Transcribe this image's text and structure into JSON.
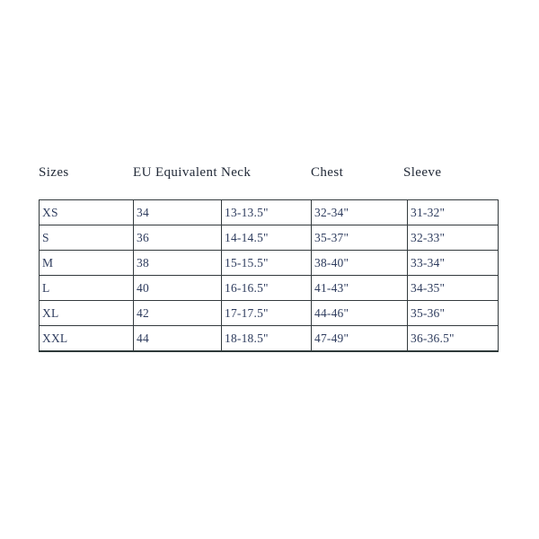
{
  "chart_data": {
    "type": "table",
    "columns": [
      "Sizes",
      "EU Equivalent",
      "Neck",
      "Chest",
      "Sleeve"
    ],
    "rows": [
      [
        "XS",
        "34",
        "13-13.5\"",
        "32-34\"",
        "31-32\""
      ],
      [
        "S",
        "36",
        "14-14.5\"",
        "35-37\"",
        "32-33\""
      ],
      [
        "M",
        "38",
        "15-15.5\"",
        "38-40\"",
        "33-34\""
      ],
      [
        "L",
        "40",
        "16-16.5\"",
        "41-43\"",
        "34-35\""
      ],
      [
        "XL",
        "42",
        "17-17.5\"",
        "44-46\"",
        "35-36\""
      ],
      [
        "XXL",
        "44",
        "18-18.5\"",
        "47-49\"",
        "36-36.5\""
      ]
    ],
    "layout": {
      "header_outside_bordered_grid": true,
      "grid_lines": "all-cell-borders",
      "legend": "none",
      "title": "none"
    }
  },
  "colors": {
    "background": "#ffffff",
    "header_text": "#222a38",
    "cell_text": "#2e3c5e",
    "border": "#333a3d"
  }
}
